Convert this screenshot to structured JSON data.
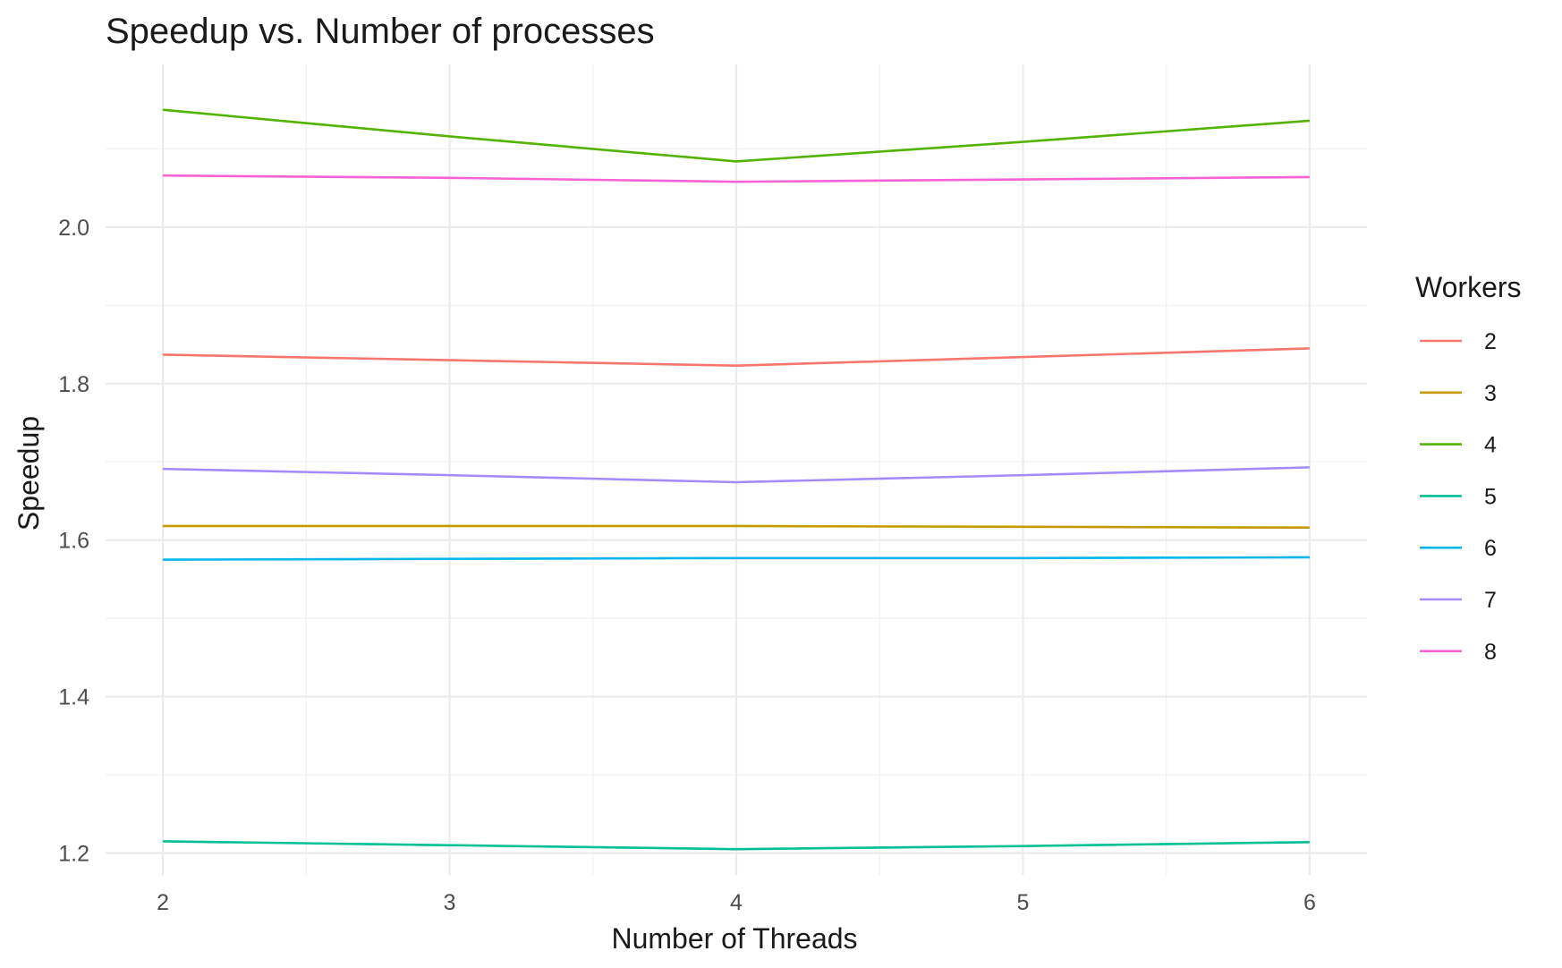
{
  "chart_data": {
    "type": "line",
    "title": "Speedup vs. Number of processes",
    "xlabel": "Number of Threads",
    "ylabel": "Speedup",
    "x": [
      2,
      3,
      4,
      5,
      6
    ],
    "x_ticks": [
      "2",
      "3",
      "4",
      "5",
      "6"
    ],
    "y_ticks": [
      "1.2",
      "1.4",
      "1.6",
      "1.8",
      "2.0"
    ],
    "y_tick_values": [
      1.2,
      1.4,
      1.6,
      1.8,
      2.0
    ],
    "xlim": [
      1.8,
      6.2
    ],
    "ylim": [
      1.172,
      2.208
    ],
    "grid": true,
    "legend": {
      "title": "Workers",
      "placement": "right"
    },
    "series": [
      {
        "name": "2",
        "color": "#F8766D",
        "values": [
          1.837,
          1.83,
          1.823,
          1.834,
          1.845
        ]
      },
      {
        "name": "3",
        "color": "#C49A00",
        "values": [
          1.618,
          1.618,
          1.618,
          1.617,
          1.616
        ]
      },
      {
        "name": "4",
        "color": "#53B400",
        "values": [
          2.15,
          2.116,
          2.084,
          2.109,
          2.136
        ]
      },
      {
        "name": "5",
        "color": "#00C094",
        "values": [
          1.215,
          1.21,
          1.205,
          1.209,
          1.214
        ]
      },
      {
        "name": "6",
        "color": "#00B6EB",
        "values": [
          1.575,
          1.576,
          1.577,
          1.577,
          1.578
        ]
      },
      {
        "name": "7",
        "color": "#A58AFF",
        "values": [
          1.691,
          1.683,
          1.674,
          1.683,
          1.693
        ]
      },
      {
        "name": "8",
        "color": "#FB61D7",
        "values": [
          2.066,
          2.063,
          2.058,
          2.061,
          2.064
        ]
      }
    ]
  }
}
